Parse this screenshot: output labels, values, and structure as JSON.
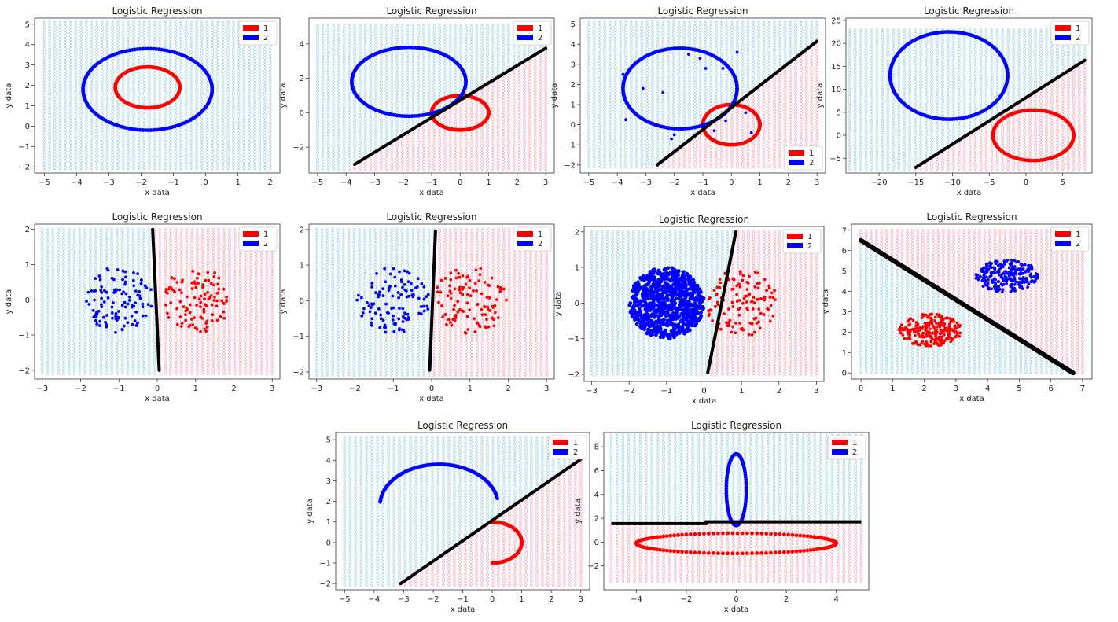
{
  "colors": {
    "class1": "#ff0000",
    "class2": "#0000ff",
    "boundary": "#000000",
    "region1": "#f4a8b8",
    "region2": "#9fd3e0"
  },
  "chart_data": [
    {
      "type": "scatter",
      "title": "Logistic Regression",
      "xlabel": "x data",
      "ylabel": "y data",
      "xlim": [
        -5.3,
        2.3
      ],
      "ylim": [
        -2.3,
        5.3
      ],
      "xticks": [
        -5,
        -4,
        -3,
        -2,
        -1,
        0,
        1,
        2
      ],
      "yticks": [
        -2,
        -1,
        0,
        1,
        2,
        3,
        4,
        5
      ],
      "grid_x": [
        -5,
        2
      ],
      "grid_y": [
        -2.1,
        5.1
      ],
      "legend": {
        "position": "top-right",
        "entries": [
          "1",
          "2"
        ]
      },
      "boundary": null,
      "shapes": [
        {
          "kind": "ellipse",
          "cls": 1,
          "cx": -1.8,
          "cy": 1.9,
          "rx": 1.0,
          "ry": 1.0,
          "start": 0,
          "end": 360,
          "n": 110
        },
        {
          "kind": "ellipse",
          "cls": 2,
          "cx": -1.8,
          "cy": 1.8,
          "rx": 2.0,
          "ry": 2.0,
          "start": 0,
          "end": 360,
          "n": 150
        }
      ]
    },
    {
      "type": "scatter",
      "title": "Logistic Regression",
      "xlabel": "x data",
      "ylabel": "y data",
      "xlim": [
        -5.3,
        3.3
      ],
      "ylim": [
        -3.5,
        5.5
      ],
      "xticks": [
        -5,
        -4,
        -3,
        -2,
        -1,
        0,
        1,
        2,
        3
      ],
      "yticks": [
        -2,
        0,
        2,
        4
      ],
      "grid_x": [
        -5,
        3
      ],
      "grid_y": [
        -3.3,
        5.1
      ],
      "legend": {
        "position": "top-right",
        "entries": [
          "1",
          "2"
        ]
      },
      "boundary": [
        [
          -3.7,
          -3.0
        ],
        [
          3.0,
          3.75
        ]
      ],
      "shapes": [
        {
          "kind": "ellipse",
          "cls": 1,
          "cx": 0,
          "cy": 0,
          "rx": 1.0,
          "ry": 1.0,
          "start": 0,
          "end": 360,
          "n": 110
        },
        {
          "kind": "ellipse",
          "cls": 2,
          "cx": -1.8,
          "cy": 1.8,
          "rx": 2.0,
          "ry": 2.0,
          "start": 0,
          "end": 360,
          "n": 150
        }
      ]
    },
    {
      "type": "scatter",
      "title": "Logistic Regression",
      "xlabel": "x data",
      "ylabel": "y data",
      "xlim": [
        -5.3,
        3.3
      ],
      "ylim": [
        -2.4,
        5.3
      ],
      "xticks": [
        -5,
        -4,
        -3,
        -2,
        -1,
        0,
        1,
        2,
        3
      ],
      "yticks": [
        -2,
        -1,
        0,
        1,
        2,
        3,
        4,
        5
      ],
      "grid_x": [
        -5,
        3
      ],
      "grid_y": [
        -2.1,
        5.1
      ],
      "legend": {
        "position": "bottom-right",
        "entries": [
          "1",
          "2"
        ]
      },
      "boundary": [
        [
          -2.6,
          -2.0
        ],
        [
          3.0,
          4.15
        ]
      ],
      "shapes": [
        {
          "kind": "ellipse",
          "cls": 1,
          "cx": 0,
          "cy": 0,
          "rx": 1.0,
          "ry": 1.0,
          "start": 0,
          "end": 360,
          "n": 110
        },
        {
          "kind": "ellipse",
          "cls": 2,
          "cx": -1.8,
          "cy": 1.8,
          "rx": 2.0,
          "ry": 2.0,
          "start": 0,
          "end": 360,
          "n": 150
        }
      ],
      "points": [
        {
          "cls": 2,
          "xy": [
            [
              -3.8,
              2.5
            ],
            [
              -3.7,
              0.25
            ],
            [
              -3.1,
              1.8
            ],
            [
              -2.4,
              1.6
            ],
            [
              -2.1,
              -0.7
            ],
            [
              -2.0,
              -0.5
            ],
            [
              -1.5,
              3.5
            ],
            [
              -1.1,
              3.3
            ],
            [
              -0.9,
              2.8
            ],
            [
              -0.3,
              2.8
            ],
            [
              0.2,
              3.6
            ],
            [
              0.5,
              0.6
            ],
            [
              0.7,
              -0.4
            ],
            [
              -0.6,
              -0.3
            ],
            [
              -0.2,
              0.2
            ]
          ]
        }
      ]
    },
    {
      "type": "scatter",
      "title": "Logistic Regression",
      "xlabel": "x data",
      "ylabel": "y data",
      "xlim": [
        -24.5,
        9
      ],
      "ylim": [
        -8.2,
        25.5
      ],
      "xticks": [
        -20,
        -15,
        -10,
        -5,
        0,
        5
      ],
      "yticks": [
        -5,
        0,
        5,
        10,
        15,
        20,
        25
      ],
      "grid_x": [
        -24,
        8
      ],
      "grid_y": [
        -7.5,
        23
      ],
      "legend": {
        "position": "top-right",
        "entries": [
          "1",
          "2"
        ]
      },
      "boundary": [
        [
          -15,
          -7.0
        ],
        [
          8.0,
          16.3
        ]
      ],
      "shapes": [
        {
          "kind": "ellipse",
          "cls": 1,
          "cx": 1,
          "cy": 0,
          "rx": 5.5,
          "ry": 5.5,
          "start": 0,
          "end": 360,
          "n": 110
        },
        {
          "kind": "ellipse",
          "cls": 2,
          "cx": -10.5,
          "cy": 13,
          "rx": 8.0,
          "ry": 9.5,
          "start": 0,
          "end": 360,
          "n": 150
        }
      ]
    },
    {
      "type": "scatter",
      "title": "Logistic Regression",
      "xlabel": "x data",
      "ylabel": "y data",
      "xlim": [
        -3.2,
        3.2
      ],
      "ylim": [
        -2.25,
        2.15
      ],
      "xticks": [
        -3,
        -2,
        -1,
        0,
        1,
        2,
        3
      ],
      "yticks": [
        -2,
        -1,
        0,
        1,
        2
      ],
      "grid_x": [
        -3,
        3
      ],
      "grid_y": [
        -2.1,
        2.0
      ],
      "legend": {
        "position": "top-right",
        "entries": [
          "1",
          "2"
        ]
      },
      "boundary": [
        [
          -0.12,
          2.0
        ],
        [
          0.05,
          -2.0
        ]
      ],
      "clusters": [
        {
          "cls": 2,
          "cx": -1.0,
          "cy": 0,
          "rx": 0.9,
          "ry": 0.95,
          "n": 110,
          "seed": 11
        },
        {
          "cls": 1,
          "cx": 1.0,
          "cy": 0,
          "rx": 0.9,
          "ry": 0.95,
          "n": 110,
          "seed": 22
        }
      ]
    },
    {
      "type": "scatter",
      "title": "Logistic Regression",
      "xlabel": "x data",
      "ylabel": "y data",
      "xlim": [
        -3.2,
        3.2
      ],
      "ylim": [
        -2.2,
        2.15
      ],
      "xticks": [
        -3,
        -2,
        -1,
        0,
        1,
        2,
        3
      ],
      "yticks": [
        -2,
        -1,
        0,
        1,
        2
      ],
      "grid_x": [
        -3,
        3
      ],
      "grid_y": [
        -2.1,
        2.0
      ],
      "legend": {
        "position": "top-right",
        "entries": [
          "1",
          "2"
        ]
      },
      "boundary": [
        [
          -0.05,
          -1.95
        ],
        [
          0.1,
          1.95
        ]
      ],
      "clusters": [
        {
          "cls": 2,
          "cx": -1.0,
          "cy": 0,
          "rx": 0.95,
          "ry": 0.95,
          "n": 110,
          "seed": 33
        },
        {
          "cls": 1,
          "cx": 1.0,
          "cy": 0,
          "rx": 0.95,
          "ry": 0.95,
          "n": 110,
          "seed": 44
        }
      ]
    },
    {
      "type": "scatter",
      "title": "Logistic Regression",
      "xlabel": "x data",
      "ylabel": "y data",
      "xlim": [
        -3.2,
        3.2
      ],
      "ylim": [
        -2.2,
        2.15
      ],
      "xticks": [
        -3,
        -2,
        -1,
        0,
        1,
        2,
        3
      ],
      "yticks": [
        -2,
        -1,
        0,
        1,
        2
      ],
      "grid_x": [
        -3,
        3
      ],
      "grid_y": [
        -2.0,
        2.0
      ],
      "legend": {
        "position": "top-right",
        "entries": [
          "1",
          "2"
        ]
      },
      "boundary": [
        [
          0.1,
          -1.95
        ],
        [
          0.85,
          2.0
        ]
      ],
      "clusters": [
        {
          "cls": 1,
          "cx": 1.0,
          "cy": 0,
          "rx": 0.95,
          "ry": 0.95,
          "n": 120,
          "seed": 55
        },
        {
          "cls": 2,
          "cx": -1.0,
          "cy": 0,
          "rx": 1.0,
          "ry": 1.0,
          "n": 800,
          "seed": 66
        }
      ]
    },
    {
      "type": "scatter",
      "title": "Logistic Regression",
      "xlabel": "x data",
      "ylabel": "y data",
      "xlim": [
        -0.3,
        7.3
      ],
      "ylim": [
        -0.3,
        7.3
      ],
      "xticks": [
        0,
        1,
        2,
        3,
        4,
        5,
        6,
        7
      ],
      "yticks": [
        0,
        1,
        2,
        3,
        4,
        5,
        6,
        7
      ],
      "grid_x": [
        0,
        7
      ],
      "grid_y": [
        0,
        7
      ],
      "legend": {
        "position": "top-right",
        "entries": [
          "1",
          "2"
        ]
      },
      "boundary": [
        [
          0.0,
          6.5
        ],
        [
          6.7,
          0.0
        ]
      ],
      "boundary_width": 6,
      "region_flip": true,
      "clusters": [
        {
          "cls": 1,
          "cx": 2.2,
          "cy": 2.1,
          "rx": 1.0,
          "ry": 0.8,
          "n": 240,
          "seed": 77
        },
        {
          "cls": 2,
          "cx": 4.6,
          "cy": 4.75,
          "rx": 1.0,
          "ry": 0.8,
          "n": 240,
          "seed": 88
        }
      ]
    },
    {
      "type": "scatter",
      "title": "Logistic Regression",
      "xlabel": "x data",
      "ylabel": "y data",
      "xlim": [
        -5.3,
        3.3
      ],
      "ylim": [
        -2.3,
        5.35
      ],
      "xticks": [
        -5,
        -4,
        -3,
        -2,
        -1,
        0,
        1,
        2,
        3
      ],
      "yticks": [
        -2,
        -1,
        0,
        1,
        2,
        3,
        4,
        5
      ],
      "grid_x": [
        -5,
        3
      ],
      "grid_y": [
        -2.1,
        5.1
      ],
      "legend": {
        "position": "top-right",
        "entries": [
          "1",
          "2"
        ]
      },
      "boundary": [
        [
          -3.1,
          -2.0
        ],
        [
          3.0,
          4.05
        ]
      ],
      "shapes": [
        {
          "kind": "ellipse",
          "cls": 2,
          "cx": -1.8,
          "cy": 1.8,
          "rx": 2.0,
          "ry": 2.0,
          "start": 10,
          "end": 175,
          "n": 110
        },
        {
          "kind": "ellipse",
          "cls": 1,
          "cx": 0,
          "cy": 0,
          "rx": 1.0,
          "ry": 1.0,
          "start": -90,
          "end": 90,
          "n": 70
        }
      ]
    },
    {
      "type": "scatter",
      "title": "Logistic Regression",
      "xlabel": "x data",
      "ylabel": "y data",
      "xlim": [
        -5.3,
        5.3
      ],
      "ylim": [
        -4.0,
        9.2
      ],
      "xticks": [
        -4,
        -2,
        0,
        2,
        4
      ],
      "yticks": [
        -2,
        0,
        2,
        4,
        6,
        8
      ],
      "grid_x": [
        -5,
        5
      ],
      "grid_y": [
        -3.3,
        9.0
      ],
      "legend": {
        "position": "top-right",
        "entries": [
          "1",
          "2"
        ]
      },
      "boundary": "step",
      "step": [
        [
          -5,
          1.55
        ],
        [
          -1.2,
          1.55
        ],
        [
          -1.2,
          1.7
        ],
        [
          5,
          1.7
        ]
      ],
      "shapes": [
        {
          "kind": "ellipse",
          "cls": 1,
          "cx": 0,
          "cy": -0.1,
          "rx": 4.0,
          "ry": 0.85,
          "start": 0,
          "end": 360,
          "n": 130
        },
        {
          "kind": "ellipse",
          "cls": 2,
          "cx": 0,
          "cy": 4.4,
          "rx": 0.4,
          "ry": 3.0,
          "start": 0,
          "end": 360,
          "n": 90
        }
      ]
    }
  ]
}
